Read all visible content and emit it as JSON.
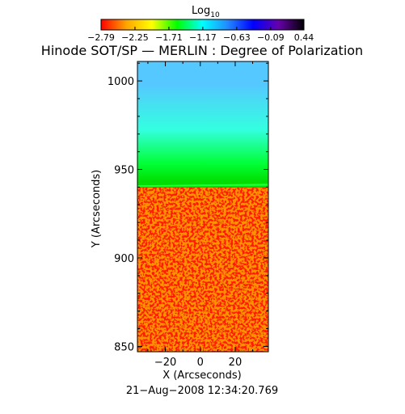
{
  "chart_data": {
    "type": "heatmap",
    "title": "Hinode SOT/SP — MERLIN : Degree of Polarization",
    "xlabel": "X (Arcseconds)",
    "ylabel": "Y (Arcseconds)",
    "xticks": [
      -20,
      0,
      20
    ],
    "xtick_labels": [
      "−20",
      "0",
      "20"
    ],
    "yticks": [
      850,
      900,
      950,
      1000
    ],
    "xlim": [
      -36,
      39
    ],
    "ylim": [
      847,
      1011
    ],
    "limb_y": [
      940,
      941
    ],
    "colorbar": {
      "title_base": "Log",
      "title_sub": "10",
      "range": [
        -2.79,
        0.44
      ],
      "tick_values": [
        -2.79,
        -2.25,
        -1.71,
        -1.17,
        -0.63,
        -0.09,
        0.44
      ],
      "tick_labels": [
        "−2.79",
        "−2.25",
        "−1.71",
        "−1.17",
        "−0.63",
        "−0.09",
        "0.44"
      ],
      "colors": [
        "#ff0000",
        "#ffa500",
        "#ffff00",
        "#00ff00",
        "#00ffff",
        "#2288ff",
        "#0000ff",
        "#6600aa",
        "#000000"
      ]
    },
    "regions": [
      {
        "name": "on-disk",
        "y_range": [
          847,
          940
        ],
        "log_value": -2.79,
        "color": "#ff1a00"
      },
      {
        "name": "limb",
        "y_range": [
          940,
          946
        ],
        "log_value": -1.9,
        "color": "#00dd00"
      },
      {
        "name": "off-limb-low",
        "y_range": [
          946,
          960
        ],
        "log_value": -1.6,
        "color": "#00ff33"
      },
      {
        "name": "off-limb-mid",
        "y_range": [
          960,
          985
        ],
        "log_value": -1.1,
        "color": "#33ffe0"
      },
      {
        "name": "off-limb-high",
        "y_range": [
          985,
          1011
        ],
        "log_value": -0.7,
        "color": "#55c8ff"
      }
    ],
    "grid": false,
    "legend": "colorbar top"
  },
  "footer": {
    "timestamp": "21−Aug−2008 12:34:20.769"
  }
}
